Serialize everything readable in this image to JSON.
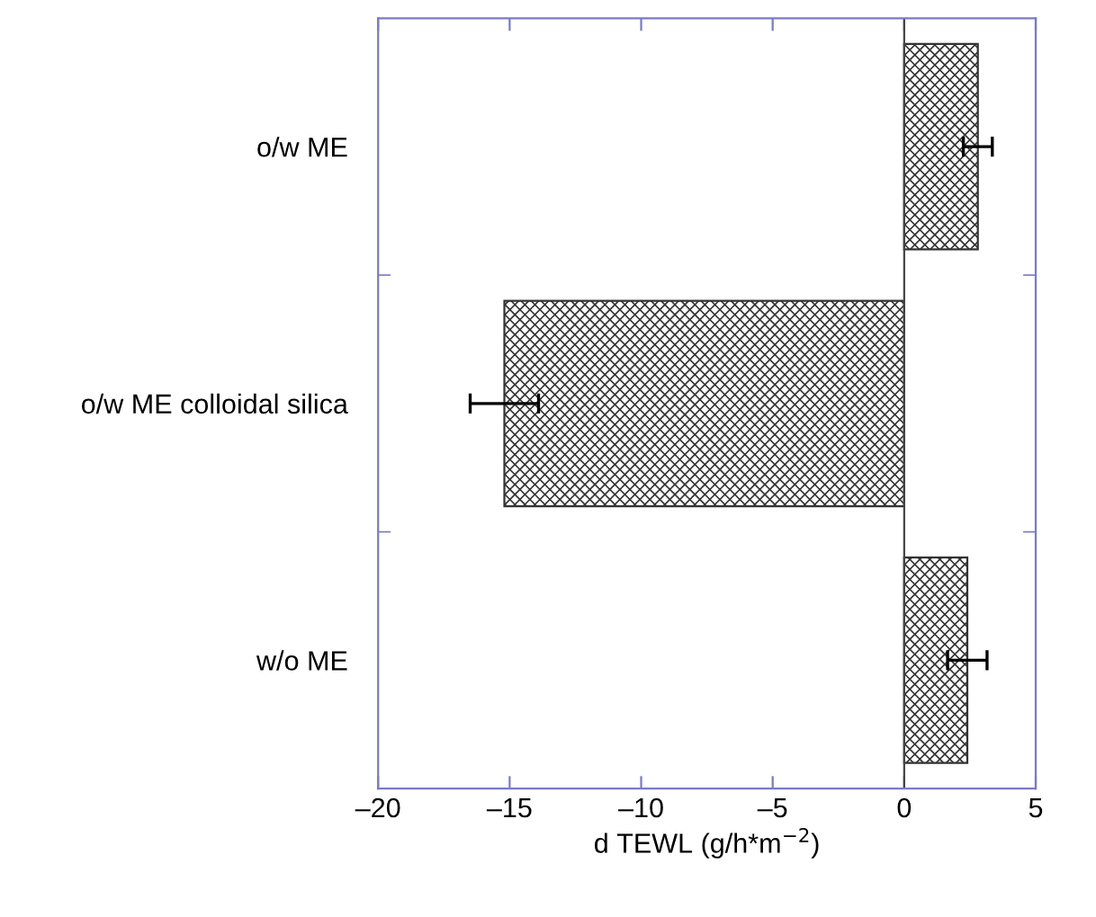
{
  "chart_data": {
    "type": "bar",
    "orientation": "horizontal",
    "xlabel": "d TEWL (g/h*m$^{−2}$)",
    "categories": [
      "o/w ME",
      "o/w ME colloidal silica",
      "w/o ME"
    ],
    "values": [
      2.8,
      -15.2,
      2.4
    ],
    "errors": [
      0.55,
      1.3,
      0.75
    ],
    "color": "#333333",
    "ref_lines": [
      {
        "axis": "x",
        "value": 0,
        "color": "#444444"
      }
    ],
    "xlim": [
      -20,
      5
    ],
    "xticks": [
      {
        "value": -20,
        "label": "–20"
      },
      {
        "value": -15,
        "label": "–15"
      },
      {
        "value": -10,
        "label": "–10"
      },
      {
        "value": -5,
        "label": "–5"
      },
      0,
      5
    ],
    "grid": false,
    "legend": false
  }
}
